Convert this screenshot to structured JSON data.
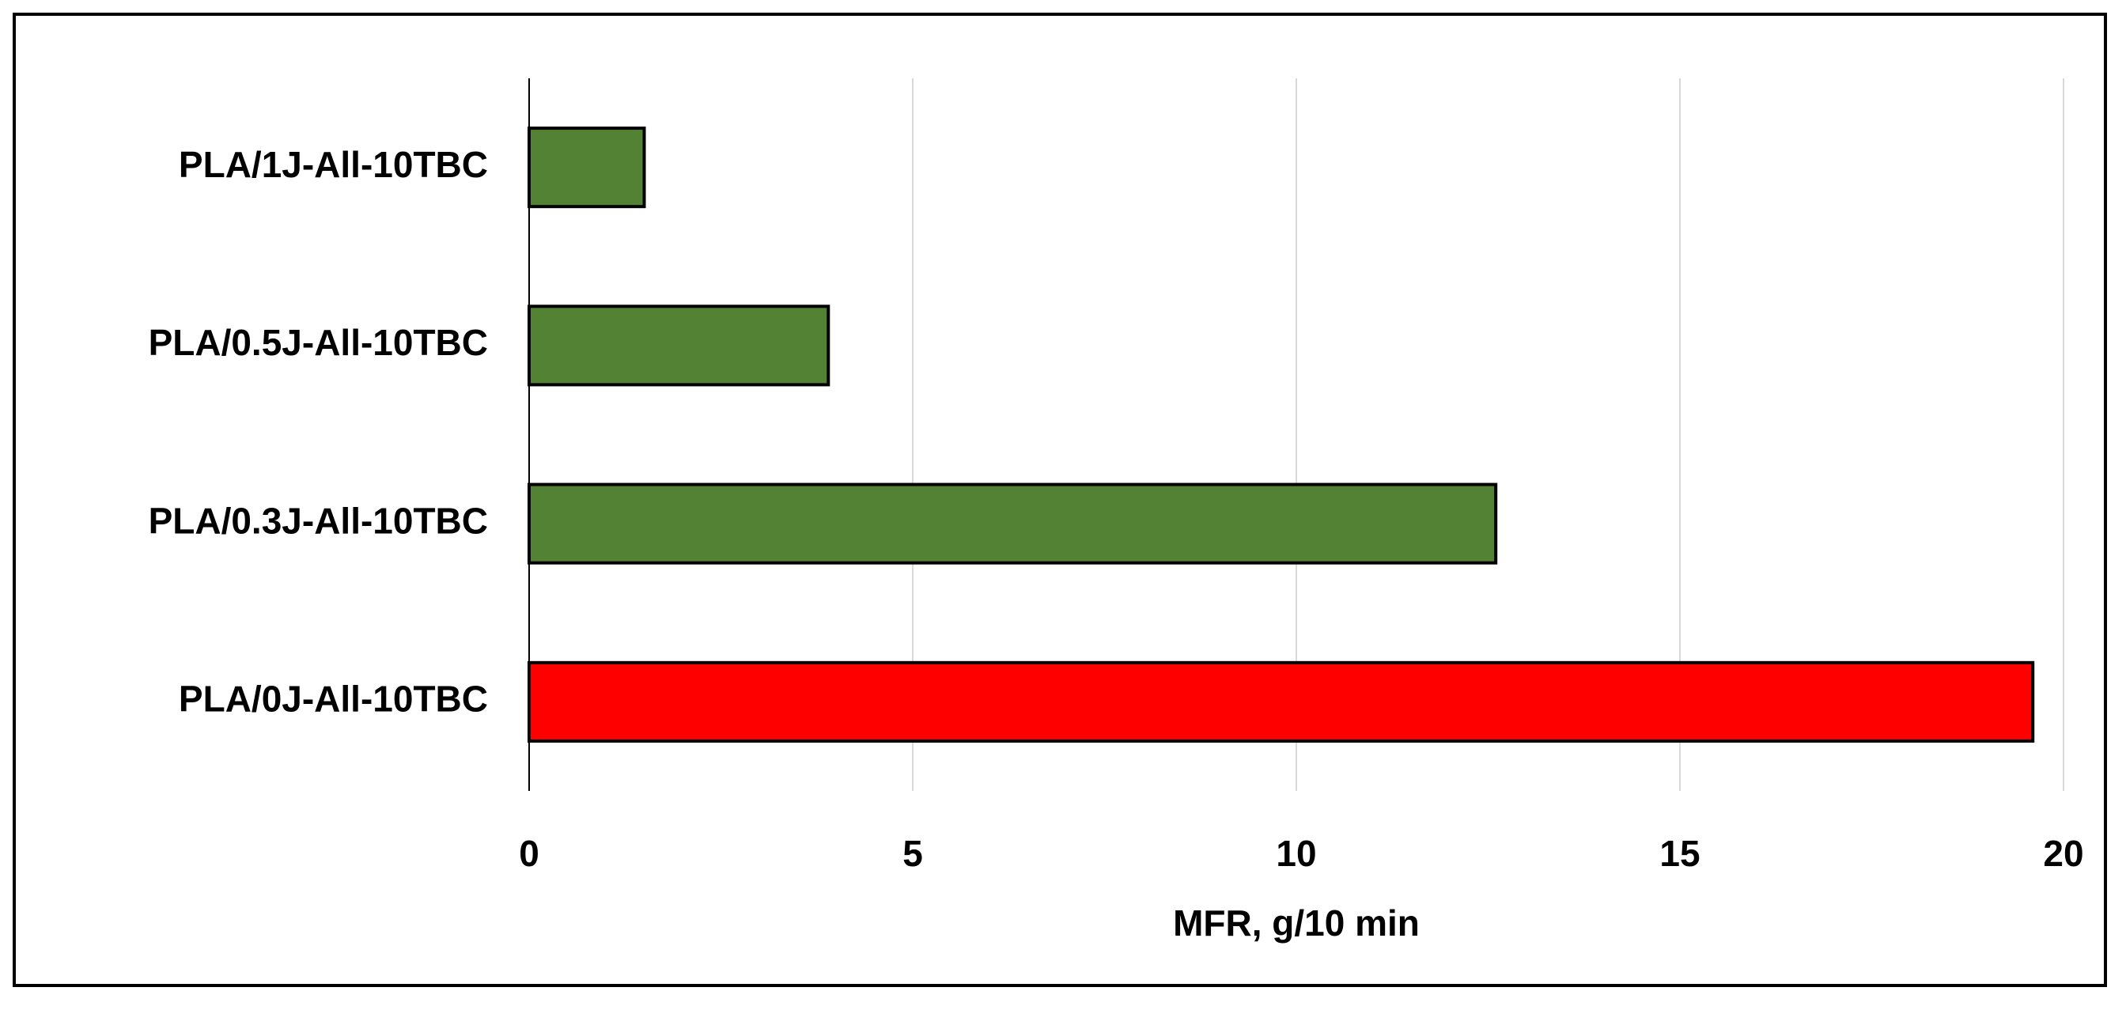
{
  "chart_data": {
    "type": "barh",
    "categories": [
      "PLA/1J-All-10TBC",
      "PLA/0.5J-All-10TBC",
      "PLA/0.3J-All-10TBC",
      "PLA/0J-All-10TBC"
    ],
    "values": [
      1.5,
      3.9,
      12.6,
      19.6
    ],
    "colors": [
      "#548235",
      "#548235",
      "#548235",
      "#ff0000"
    ],
    "xlabel": "MFR, g/10 min",
    "xlim": [
      0,
      20
    ],
    "xticks": [
      0,
      5,
      10,
      15,
      20
    ],
    "grid": true
  }
}
